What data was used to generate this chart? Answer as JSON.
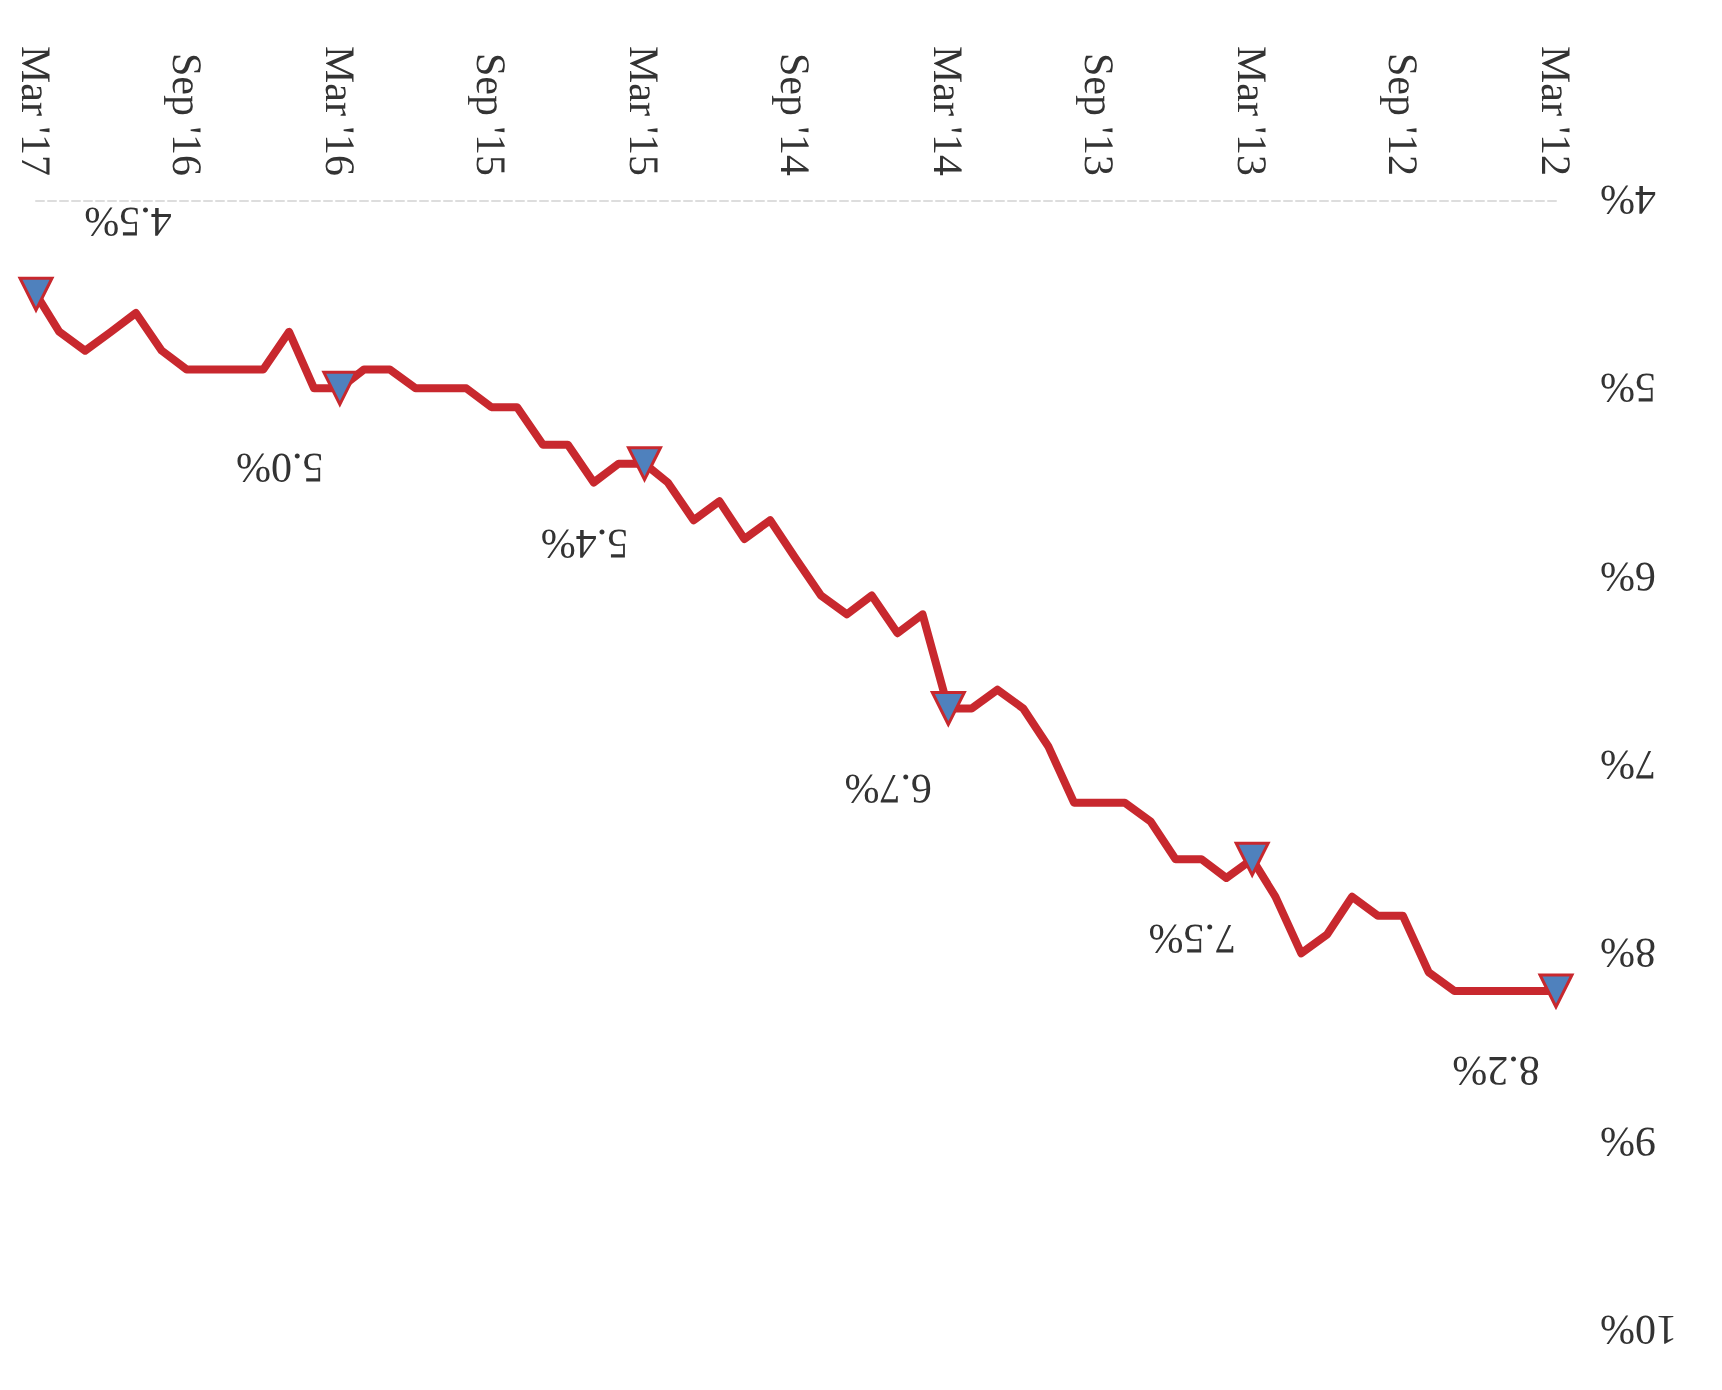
{
  "chart_data": {
    "type": "line",
    "x": [
      "2012-03",
      "2012-04",
      "2012-05",
      "2012-06",
      "2012-07",
      "2012-08",
      "2012-09",
      "2012-10",
      "2012-11",
      "2012-12",
      "2013-01",
      "2013-02",
      "2013-03",
      "2013-04",
      "2013-05",
      "2013-06",
      "2013-07",
      "2013-08",
      "2013-09",
      "2013-10",
      "2013-11",
      "2013-12",
      "2014-01",
      "2014-02",
      "2014-03",
      "2014-04",
      "2014-05",
      "2014-06",
      "2014-07",
      "2014-08",
      "2014-09",
      "2014-10",
      "2014-11",
      "2014-12",
      "2015-01",
      "2015-02",
      "2015-03",
      "2015-04",
      "2015-05",
      "2015-06",
      "2015-07",
      "2015-08",
      "2015-09",
      "2015-10",
      "2015-11",
      "2015-12",
      "2016-01",
      "2016-02",
      "2016-03",
      "2016-04",
      "2016-05",
      "2016-06",
      "2016-07",
      "2016-08",
      "2016-09",
      "2016-10",
      "2016-11",
      "2016-12",
      "2017-01",
      "2017-02",
      "2017-03"
    ],
    "series": [
      {
        "color": "#c8282e",
        "values": [
          8.2,
          8.2,
          8.2,
          8.2,
          8.2,
          8.1,
          7.8,
          7.8,
          7.7,
          7.9,
          8.0,
          7.7,
          7.5,
          7.6,
          7.5,
          7.5,
          7.3,
          7.2,
          7.2,
          7.2,
          6.9,
          6.7,
          6.6,
          6.7,
          6.7,
          6.2,
          6.3,
          6.1,
          6.2,
          6.1,
          5.9,
          5.7,
          5.8,
          5.6,
          5.7,
          5.5,
          5.4,
          5.4,
          5.5,
          5.3,
          5.3,
          5.1,
          5.1,
          5.0,
          5.0,
          5.0,
          4.9,
          4.9,
          5.0,
          5.0,
          4.7,
          4.9,
          4.9,
          4.9,
          4.9,
          4.8,
          4.6,
          4.7,
          4.8,
          4.7,
          4.5
        ],
        "marker": "none"
      },
      {
        "type": "scatter",
        "color": "#4f81bd",
        "marker": "triangle",
        "x": [
          "2012-03",
          "2013-03",
          "2014-03",
          "2015-03",
          "2016-03",
          "2017-03"
        ],
        "values": [
          8.2,
          7.5,
          6.7,
          5.4,
          5.0,
          4.5
        ],
        "value_labels": [
          "8.2%",
          "7.5%",
          "6.7%",
          "5.4%",
          "5.0%",
          "4.5%"
        ]
      }
    ],
    "xlim": [
      "2017-03",
      "2012-03"
    ],
    "xticks": [
      {
        "value": "2012-03",
        "label": "Mar '12"
      },
      {
        "value": "2012-09",
        "label": "Sep '12"
      },
      {
        "value": "2013-03",
        "label": "Mar '13"
      },
      {
        "value": "2013-09",
        "label": "Sep '13"
      },
      {
        "value": "2014-03",
        "label": "Mar '14"
      },
      {
        "value": "2014-09",
        "label": "Sep '14"
      },
      {
        "value": "2015-03",
        "label": "Mar '15"
      },
      {
        "value": "2015-09",
        "label": "Sep '15"
      },
      {
        "value": "2016-03",
        "label": "Mar '16"
      },
      {
        "value": "2016-09",
        "label": "Sep '16"
      },
      {
        "value": "2017-03",
        "label": "Mar '17"
      }
    ],
    "ylim": [
      10,
      4
    ],
    "yticks": [
      {
        "value": 4,
        "label": "4%"
      },
      {
        "value": 5,
        "label": "5%"
      },
      {
        "value": 6,
        "label": "6%"
      },
      {
        "value": 7,
        "label": "7%"
      },
      {
        "value": 8,
        "label": "8%"
      },
      {
        "value": 9,
        "label": "9%"
      },
      {
        "value": 10,
        "label": "10%"
      }
    ],
    "grid": false
  }
}
